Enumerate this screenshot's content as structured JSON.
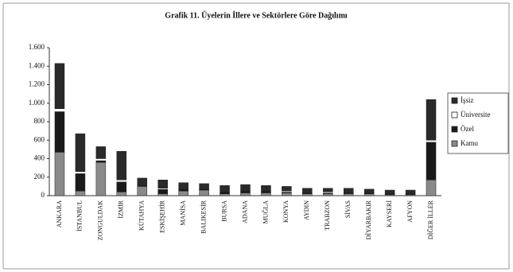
{
  "chart_data": {
    "type": "stacked_bar",
    "title": "Grafik 11. Üyelerin İllere ve Sektörlere Göre Dağılımı",
    "categories": [
      "ANKARA",
      "İSTANBUL",
      "ZONGULDAK",
      "İZMİR",
      "KÜTAHYA",
      "ESKİŞEHİR",
      "MANİSA",
      "BALIKESİR",
      "BURSA",
      "ADANA",
      "MUĞLA",
      "KONYA",
      "AYDIN",
      "TRABZON",
      "SİVAS",
      "DİYARBAKIR",
      "KAYSERİ",
      "AFYON",
      "DİĞER İLLER"
    ],
    "series": [
      {
        "name": "Kamu",
        "color": "#8a8a8a",
        "values": [
          470,
          50,
          360,
          40,
          100,
          20,
          50,
          60,
          20,
          30,
          30,
          30,
          20,
          20,
          20,
          20,
          10,
          10,
          170
        ]
      },
      {
        "name": "Özel",
        "color": "#1a1a1a",
        "values": [
          440,
          190,
          20,
          110,
          10,
          50,
          20,
          10,
          20,
          20,
          20,
          10,
          10,
          10,
          10,
          10,
          10,
          10,
          410
        ]
      },
      {
        "name": "Üniversite",
        "color": "#ffffff",
        "values": [
          30,
          20,
          20,
          20,
          0,
          10,
          0,
          0,
          0,
          0,
          0,
          10,
          0,
          10,
          0,
          0,
          0,
          0,
          20
        ]
      },
      {
        "name": "İşsiz",
        "color": "#2a2a2a",
        "values": [
          490,
          410,
          130,
          310,
          80,
          90,
          70,
          60,
          70,
          70,
          60,
          50,
          50,
          40,
          50,
          40,
          40,
          40,
          440
        ]
      }
    ],
    "ylim": [
      0,
      1600
    ],
    "yticks": [
      0,
      200,
      400,
      600,
      800,
      {
        "value": 1000,
        "label": "1.000"
      },
      {
        "value": 1200,
        "label": "1.200"
      },
      {
        "value": 1400,
        "label": "1.400"
      },
      {
        "value": 1600,
        "label": "1.600"
      }
    ],
    "legend": "right"
  }
}
